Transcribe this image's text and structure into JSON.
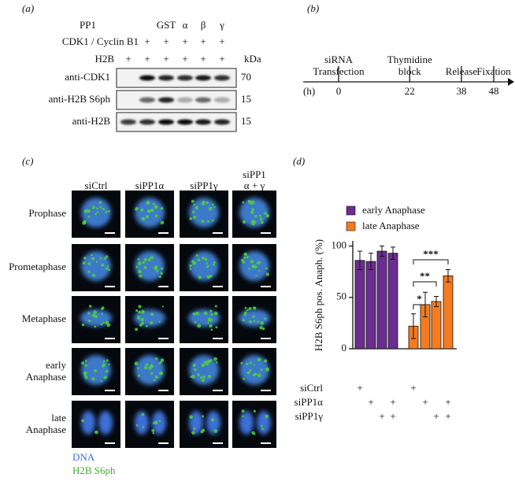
{
  "panel_a": {
    "label": "(a)",
    "rows": [
      {
        "name": "PP1",
        "cells": [
          null,
          null,
          "GST",
          "α",
          "β",
          "γ"
        ]
      },
      {
        "name": "CDK1 / Cyclin B1",
        "cells": [
          null,
          "+",
          "+",
          "+",
          "+",
          "+"
        ]
      },
      {
        "name": "H2B",
        "cells": [
          "+",
          "+",
          "+",
          "+",
          "+",
          "+"
        ]
      }
    ],
    "kda": "kDa",
    "blots": [
      {
        "label": "anti-CDK1",
        "size": "70"
      },
      {
        "label": "anti-H2B S6ph",
        "size": "15"
      },
      {
        "label": "anti-H2B",
        "size": "15"
      }
    ]
  },
  "panel_b": {
    "label": "(b)",
    "unit": "(h)",
    "events": [
      {
        "label": [
          "siRNA",
          "Transfection"
        ],
        "time": 0
      },
      {
        "label": [
          "Thymidine",
          "block"
        ],
        "time": 22
      },
      {
        "label": [
          "Release"
        ],
        "time": 38
      },
      {
        "label": [
          "Fixation"
        ],
        "time": 48
      }
    ]
  },
  "panel_c": {
    "label": "(c)",
    "columns": [
      [
        "siCtrl"
      ],
      [
        "siPP1α"
      ],
      [
        "siPP1γ"
      ],
      [
        "siPP1",
        "α + γ"
      ]
    ],
    "rows": [
      [
        "Prophase"
      ],
      [
        "Prometaphase"
      ],
      [
        "Metaphase"
      ],
      [
        "early",
        "Anaphase"
      ],
      [
        "late",
        "Anaphase"
      ]
    ],
    "legend": [
      {
        "name": "DNA",
        "color": "#3d6fd6"
      },
      {
        "name": "H2B S6ph",
        "color": "#3fae2a"
      }
    ]
  },
  "panel_d": {
    "label": "(d)",
    "chart_data": {
      "type": "bar",
      "y_label": "H2B S6ph pos. Anaph. (%)",
      "ylim": [
        0,
        105
      ],
      "yticks": [
        0,
        50,
        100
      ],
      "series": [
        {
          "name": "early Anaphase",
          "color": "#6b2d8f",
          "values": [
            86,
            85,
            95,
            93
          ],
          "errors": [
            9,
            8,
            5,
            6
          ]
        },
        {
          "name": "late Anaphase",
          "color": "#f47b20",
          "values": [
            22,
            43,
            46,
            71
          ],
          "errors": [
            12,
            12,
            5,
            6
          ]
        }
      ],
      "conditions": [
        {
          "name": "siCtrl",
          "cells": [
            "+",
            null,
            null,
            null,
            "+",
            null,
            null,
            null
          ]
        },
        {
          "name": "siPP1α",
          "cells": [
            null,
            "+",
            null,
            "+",
            null,
            "+",
            null,
            "+"
          ]
        },
        {
          "name": "siPP1γ",
          "cells": [
            null,
            null,
            "+",
            "+",
            null,
            null,
            "+",
            "+"
          ]
        }
      ],
      "significance": [
        "***",
        "**",
        "*"
      ]
    }
  }
}
